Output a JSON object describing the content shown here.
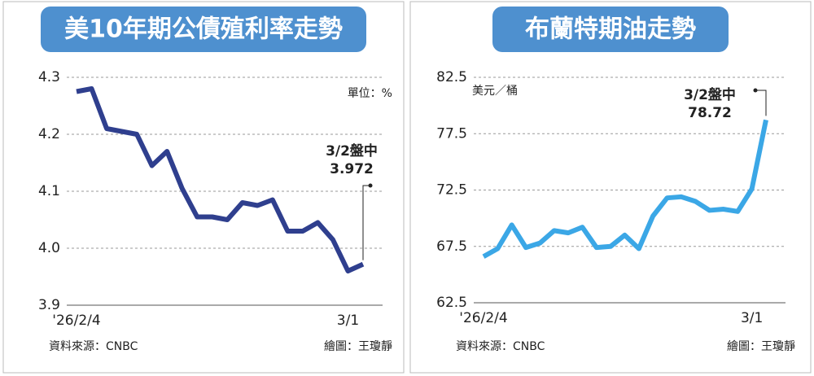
{
  "chart_data": [
    {
      "type": "line",
      "title": "美10年期公債殖利率走勢",
      "unit": "單位：%",
      "categories": [
        "'26/2/4",
        null,
        null,
        null,
        null,
        null,
        null,
        null,
        null,
        null,
        null,
        null,
        null,
        null,
        null,
        null,
        null,
        null,
        "3/1",
        null
      ],
      "series": [
        {
          "color": "#2f3f8e",
          "values": [
            4.275,
            4.28,
            4.21,
            4.205,
            4.2,
            4.145,
            4.17,
            4.105,
            4.055,
            4.055,
            4.05,
            4.08,
            4.075,
            4.085,
            4.03,
            4.03,
            4.045,
            4.015,
            3.96,
            3.972
          ]
        }
      ],
      "ylim": [
        3.9,
        4.3
      ],
      "yticks": [
        3.9,
        {
          "value": 4,
          "label": "4.0"
        },
        4.1,
        4.2,
        4.3
      ],
      "grid": true,
      "annotation": "3/2盤中",
      "source": "資料來源：CNBC",
      "credit": "繪圖：王瓊靜"
    },
    {
      "type": "line",
      "title": "布蘭特期油走勢",
      "unit": "美元／桶",
      "categories": [
        "'26/2/4",
        null,
        null,
        null,
        null,
        null,
        null,
        null,
        null,
        null,
        null,
        null,
        null,
        null,
        null,
        null,
        null,
        null,
        null,
        "3/1",
        null
      ],
      "series": [
        {
          "color": "#3ba7e6",
          "values": [
            66.6,
            67.3,
            69.4,
            67.4,
            67.8,
            68.9,
            68.7,
            69.2,
            67.4,
            67.5,
            68.5,
            67.3,
            70.2,
            71.8,
            71.9,
            71.5,
            70.7,
            70.8,
            70.6,
            72.6,
            78.72
          ]
        }
      ],
      "ylim": [
        62.5,
        82.5
      ],
      "yticks": [
        62.5,
        67.5,
        72.5,
        77.5,
        82.5
      ],
      "grid": true,
      "annotation": "3/2盤中",
      "source": "資料來源：CNBC",
      "credit": "繪圖：王瓊靜"
    }
  ]
}
